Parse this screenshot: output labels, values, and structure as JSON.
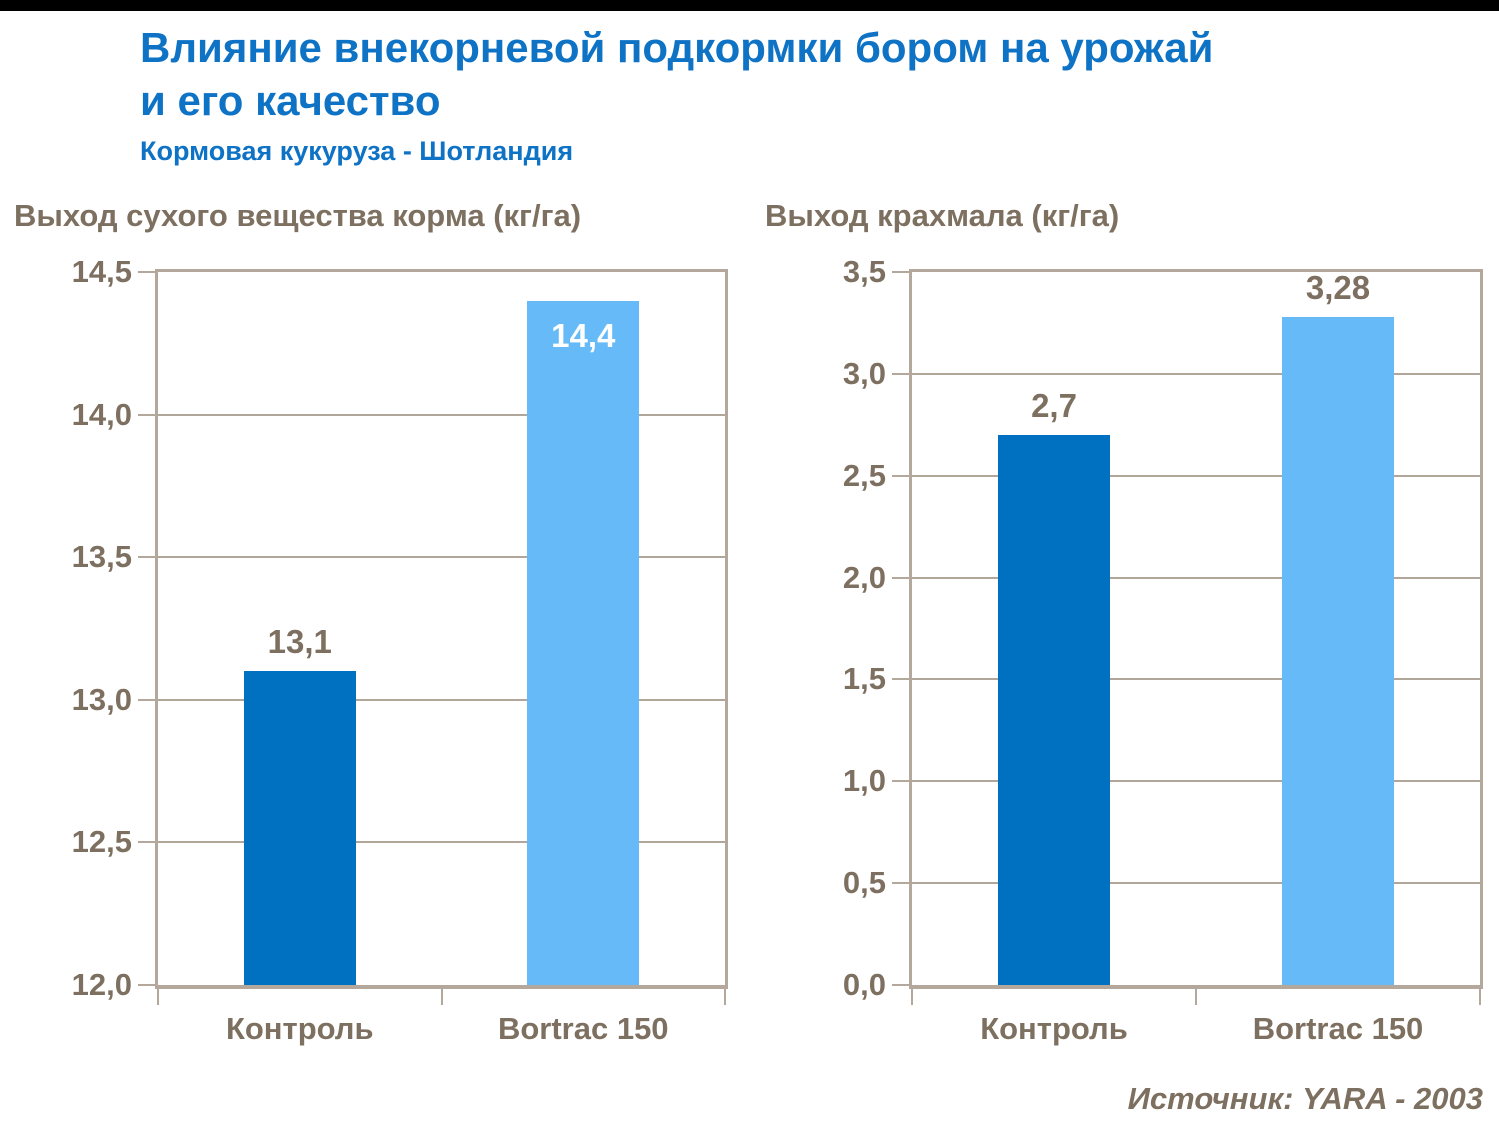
{
  "header": {
    "title_line1": "Влияние внекорневой подкормки бором на урожай",
    "title_line2": "и его качество",
    "subtitle": "Кормовая кукуруза - Шотландия"
  },
  "source": "Источник: YARA - 2003",
  "colors": {
    "title_blue": "#0E72C5",
    "text_brown": "#7D7060",
    "gridline": "#B0A699",
    "axis": "#B3A89B",
    "bar_control": "#0070C0",
    "bar_bortrac": "#66BAF8",
    "top_bar": "#000000"
  },
  "chart_data": [
    {
      "type": "bar",
      "title": "Выход сухого вещества корма (кг/га)",
      "categories": [
        "Контроль",
        "Bortrac 150"
      ],
      "values": [
        13.1,
        14.4
      ],
      "value_labels": [
        "13,1",
        "14,4"
      ],
      "label_placement": [
        "above",
        "inside"
      ],
      "bar_colors": [
        "#0070C0",
        "#66BAF8"
      ],
      "ylim": [
        12.0,
        14.5
      ],
      "ytick_step": 0.5,
      "ytick_labels": [
        "12,0",
        "12,5",
        "13,0",
        "13,5",
        "14,0",
        "14,5"
      ],
      "grid": true,
      "legend": false
    },
    {
      "type": "bar",
      "title": "Выход крахмала (кг/га)",
      "categories": [
        "Контроль",
        "Bortrac 150"
      ],
      "values": [
        2.7,
        3.28
      ],
      "value_labels": [
        "2,7",
        "3,28"
      ],
      "label_placement": [
        "above",
        "above"
      ],
      "bar_colors": [
        "#0070C0",
        "#66BAF8"
      ],
      "ylim": [
        0.0,
        3.5
      ],
      "ytick_step": 0.5,
      "ytick_labels": [
        "0,0",
        "0,5",
        "1,0",
        "1,5",
        "2,0",
        "2,5",
        "3,0",
        "3,5"
      ],
      "grid": true,
      "legend": false
    }
  ]
}
